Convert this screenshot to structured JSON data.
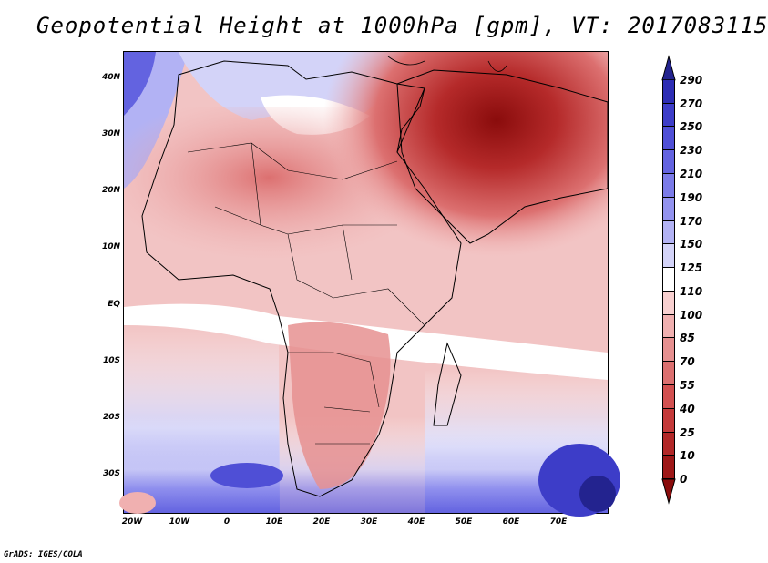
{
  "title": "Geopotential Height at 1000hPa [gpm], VT: 2017083115",
  "credit": "GrADS: IGES/COLA",
  "map": {
    "latitude_labels": [
      "40N",
      "30N",
      "20N",
      "10N",
      "EQ",
      "10S",
      "20S",
      "30S"
    ],
    "longitude_labels": [
      "20W",
      "10W",
      "0",
      "10E",
      "20E",
      "30E",
      "40E",
      "50E",
      "60E",
      "70E"
    ]
  },
  "colorbar": {
    "labels": [
      "290",
      "270",
      "250",
      "230",
      "210",
      "190",
      "170",
      "150",
      "125",
      "110",
      "100",
      "85",
      "70",
      "55",
      "40",
      "25",
      "10",
      "0"
    ],
    "colors": [
      "#23238f",
      "#2d2db4",
      "#3d3dc8",
      "#4f4fd6",
      "#6363e0",
      "#7b7be8",
      "#9393ef",
      "#b2b2f4",
      "#d3d3f8",
      "#ffffff",
      "#f8d0d0",
      "#f0b0b0",
      "#e69090",
      "#dc7070",
      "#d25050",
      "#c43a3a",
      "#b22828",
      "#9e1818",
      "#8a0c0c"
    ]
  }
}
